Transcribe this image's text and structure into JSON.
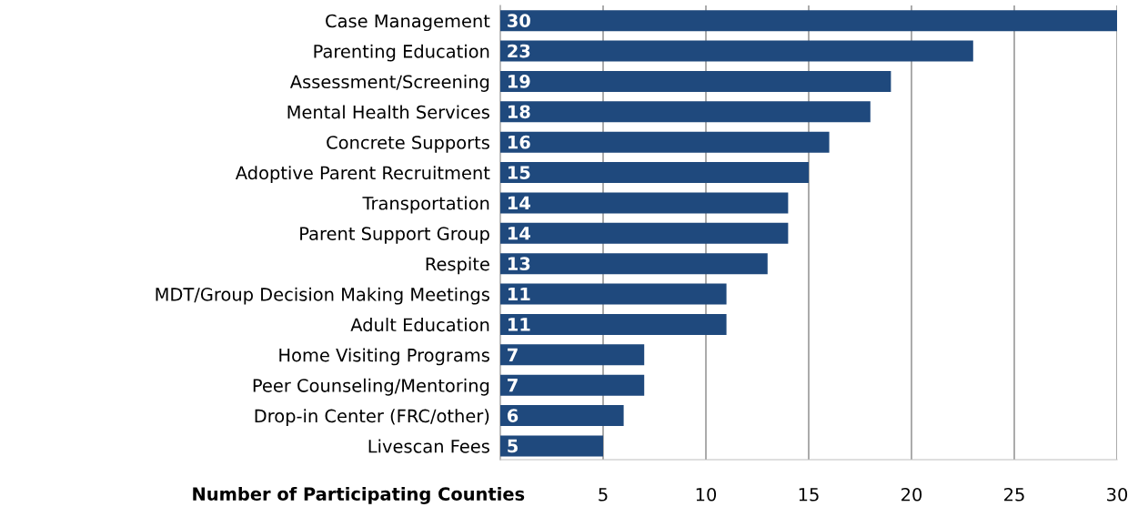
{
  "chart_data": {
    "type": "bar",
    "orientation": "horizontal",
    "xlabel": "Number of Participating Counties",
    "categories": [
      "Case Management",
      "Parenting Education",
      "Assessment/Screening",
      "Mental Health Services",
      "Concrete Supports",
      "Adoptive Parent Recruitment",
      "Transportation",
      "Parent Support Group",
      "Respite",
      "MDT/Group Decision Making Meetings",
      "Adult Education",
      "Home Visiting Programs",
      "Peer Counseling/Mentoring",
      "Drop-in Center (FRC/other)",
      "Livescan Fees"
    ],
    "values": [
      30,
      23,
      19,
      18,
      16,
      15,
      14,
      14,
      13,
      11,
      11,
      7,
      7,
      6,
      5
    ],
    "color": "#1f497d",
    "xlim": [
      0,
      30
    ],
    "xticks": [
      5,
      10,
      15,
      20,
      25,
      30
    ],
    "grid": "x",
    "data_labels": true,
    "legend": false
  }
}
